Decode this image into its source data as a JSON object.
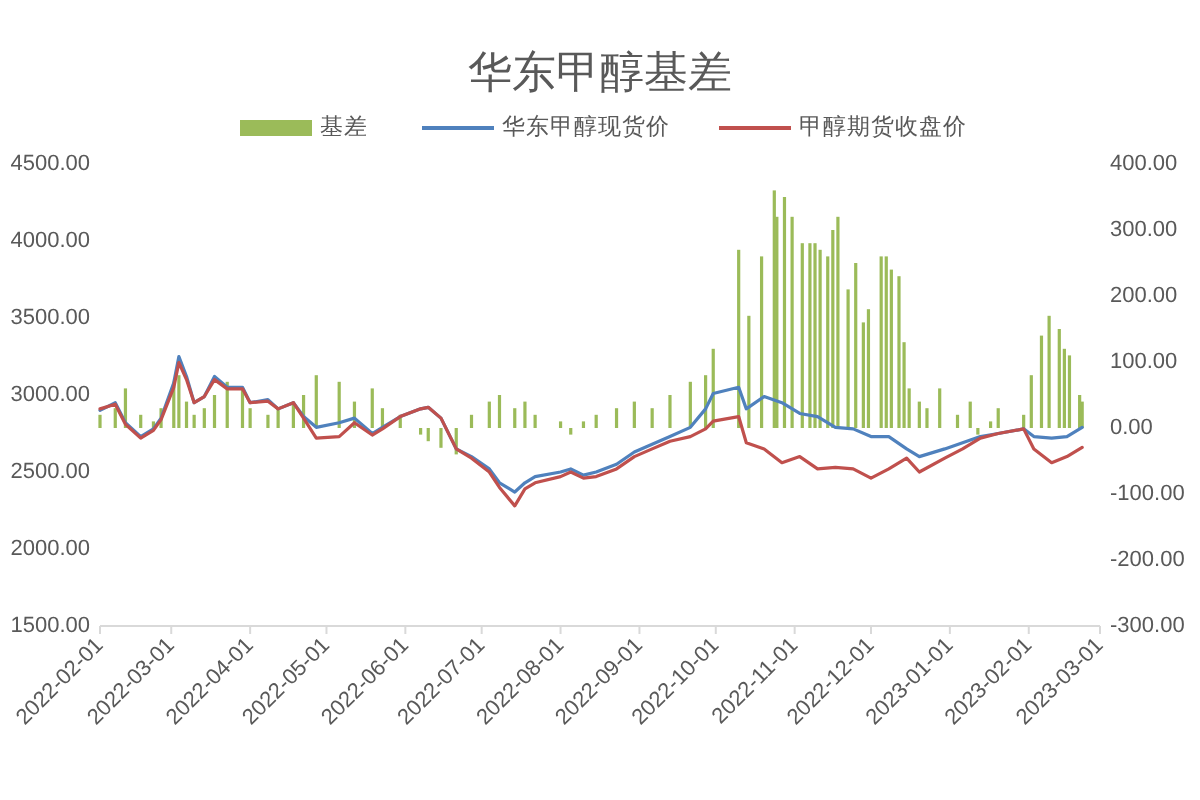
{
  "chart_data": {
    "type": "line",
    "title": "华东甲醇基差",
    "legend": "top",
    "xlim": [
      "2022-02-01",
      "2023-03-01"
    ],
    "xticks": [
      "2022-02-01",
      "2022-03-01",
      "2022-04-01",
      "2022-05-01",
      "2022-06-01",
      "2022-07-01",
      "2022-08-01",
      "2022-09-01",
      "2022-10-01",
      "2022-11-01",
      "2022-12-01",
      "2023-01-01",
      "2023-02-01",
      "2023-03-01"
    ],
    "ylim": [
      1500,
      4500
    ],
    "yticks": [
      {
        "value": 1500,
        "label": "1500.00"
      },
      {
        "value": 2000,
        "label": "2000.00"
      },
      {
        "value": 2500,
        "label": "2500.00"
      },
      {
        "value": 3000,
        "label": "3000.00"
      },
      {
        "value": 3500,
        "label": "3500.00"
      },
      {
        "value": 4000,
        "label": "4000.00"
      },
      {
        "value": 4500,
        "label": "4500.00"
      }
    ],
    "y2lim": [
      -300,
      400
    ],
    "y2ticks": [
      {
        "value": -300,
        "label": "-300.00"
      },
      {
        "value": -200,
        "label": "-200.00"
      },
      {
        "value": -100,
        "label": "-100.00"
      },
      {
        "value": 0,
        "label": "0.00"
      },
      {
        "value": 100,
        "label": "100.00"
      },
      {
        "value": 200,
        "label": "200.00"
      },
      {
        "value": 300,
        "label": "300.00"
      },
      {
        "value": 400,
        "label": "400.00"
      }
    ],
    "x": [
      "2022-02-01",
      "2022-02-07",
      "2022-02-11",
      "2022-02-17",
      "2022-02-22",
      "2022-02-25",
      "2022-03-02",
      "2022-03-04",
      "2022-03-07",
      "2022-03-10",
      "2022-03-14",
      "2022-03-18",
      "2022-03-23",
      "2022-03-29",
      "2022-04-01",
      "2022-04-08",
      "2022-04-12",
      "2022-04-18",
      "2022-04-22",
      "2022-04-27",
      "2022-05-06",
      "2022-05-12",
      "2022-05-19",
      "2022-05-23",
      "2022-05-30",
      "2022-06-07",
      "2022-06-10",
      "2022-06-15",
      "2022-06-21",
      "2022-06-27",
      "2022-07-04",
      "2022-07-08",
      "2022-07-14",
      "2022-07-18",
      "2022-07-22",
      "2022-08-01",
      "2022-08-05",
      "2022-08-10",
      "2022-08-15",
      "2022-08-23",
      "2022-08-30",
      "2022-09-06",
      "2022-09-13",
      "2022-09-21",
      "2022-09-27",
      "2022-09-30",
      "2022-10-10",
      "2022-10-13",
      "2022-10-20",
      "2022-10-27",
      "2022-11-03",
      "2022-11-10",
      "2022-11-17",
      "2022-11-24",
      "2022-12-01",
      "2022-12-08",
      "2022-12-15",
      "2022-12-20",
      "2022-12-30",
      "2023-01-06",
      "2023-01-13",
      "2023-01-20",
      "2023-01-30",
      "2023-02-03",
      "2023-02-10",
      "2023-02-16",
      "2023-02-22"
    ],
    "series": [
      {
        "name": "基差",
        "type": "bar",
        "axis": "y2",
        "color": "#9bbb59",
        "x": [
          "2022-02-01",
          "2022-02-07",
          "2022-02-11",
          "2022-02-17",
          "2022-02-22",
          "2022-02-25",
          "2022-03-02",
          "2022-03-04",
          "2022-03-07",
          "2022-03-10",
          "2022-03-14",
          "2022-03-18",
          "2022-03-23",
          "2022-03-29",
          "2022-04-01",
          "2022-04-08",
          "2022-04-12",
          "2022-04-18",
          "2022-04-22",
          "2022-04-27",
          "2022-05-06",
          "2022-05-12",
          "2022-05-19",
          "2022-05-23",
          "2022-05-30",
          "2022-06-07",
          "2022-06-10",
          "2022-06-15",
          "2022-06-21",
          "2022-06-27",
          "2022-07-04",
          "2022-07-08",
          "2022-07-14",
          "2022-07-18",
          "2022-07-22",
          "2022-08-01",
          "2022-08-05",
          "2022-08-10",
          "2022-08-15",
          "2022-08-23",
          "2022-08-30",
          "2022-09-06",
          "2022-09-13",
          "2022-09-21",
          "2022-09-27",
          "2022-09-30",
          "2022-10-10",
          "2022-10-14",
          "2022-10-19",
          "2022-10-24",
          "2022-10-25",
          "2022-10-28",
          "2022-10-31",
          "2022-11-04",
          "2022-11-07",
          "2022-11-09",
          "2022-11-11",
          "2022-11-14",
          "2022-11-16",
          "2022-11-18",
          "2022-11-22",
          "2022-11-25",
          "2022-11-28",
          "2022-11-30",
          "2022-12-05",
          "2022-12-07",
          "2022-12-09",
          "2022-12-12",
          "2022-12-14",
          "2022-12-16",
          "2022-12-20",
          "2022-12-23",
          "2022-12-28",
          "2023-01-04",
          "2023-01-09",
          "2023-01-12",
          "2023-01-17",
          "2023-01-20",
          "2023-01-30",
          "2023-02-02",
          "2023-02-06",
          "2023-02-09",
          "2023-02-13",
          "2023-02-15",
          "2023-02-17",
          "2023-02-21",
          "2023-02-22"
        ],
        "values": [
          20,
          30,
          60,
          20,
          10,
          30,
          70,
          80,
          40,
          20,
          30,
          50,
          70,
          60,
          30,
          20,
          30,
          40,
          50,
          80,
          70,
          40,
          60,
          30,
          20,
          -10,
          -20,
          -30,
          -40,
          20,
          40,
          50,
          30,
          40,
          20,
          10,
          -10,
          10,
          20,
          30,
          40,
          30,
          50,
          70,
          80,
          120,
          270,
          170,
          260,
          360,
          320,
          350,
          320,
          280,
          280,
          280,
          270,
          260,
          300,
          320,
          210,
          250,
          160,
          180,
          260,
          260,
          240,
          230,
          130,
          60,
          40,
          30,
          60,
          20,
          40,
          -10,
          10,
          30,
          20,
          80,
          140,
          170,
          150,
          120,
          110,
          50,
          40
        ]
      },
      {
        "name": "华东甲醇现货价",
        "color": "#4f81bd",
        "values": [
          2900,
          2950,
          2820,
          2730,
          2780,
          2850,
          3080,
          3250,
          3120,
          2950,
          2990,
          3120,
          3050,
          3050,
          2950,
          2970,
          2910,
          2950,
          2860,
          2790,
          2820,
          2850,
          2750,
          2790,
          2860,
          2910,
          2920,
          2850,
          2650,
          2600,
          2520,
          2430,
          2370,
          2430,
          2470,
          2500,
          2520,
          2480,
          2500,
          2550,
          2630,
          2680,
          2730,
          2790,
          2910,
          3010,
          3050,
          2910,
          2990,
          2950,
          2880,
          2860,
          2790,
          2780,
          2730,
          2730,
          2650,
          2600,
          2650,
          2690,
          2730,
          2750,
          2780,
          2730,
          2720,
          2730,
          2790
        ]
      },
      {
        "name": "甲醇期货收盘价",
        "color": "#c0504d",
        "values": [
          2910,
          2940,
          2810,
          2720,
          2770,
          2840,
          3050,
          3210,
          3100,
          2950,
          2990,
          3100,
          3040,
          3040,
          2950,
          2960,
          2910,
          2950,
          2850,
          2720,
          2730,
          2820,
          2740,
          2780,
          2860,
          2910,
          2920,
          2850,
          2650,
          2590,
          2500,
          2400,
          2280,
          2390,
          2430,
          2470,
          2500,
          2460,
          2470,
          2520,
          2600,
          2650,
          2700,
          2730,
          2780,
          2830,
          2860,
          2690,
          2650,
          2560,
          2600,
          2520,
          2530,
          2520,
          2460,
          2520,
          2590,
          2500,
          2590,
          2650,
          2720,
          2750,
          2780,
          2650,
          2560,
          2600,
          2660
        ]
      }
    ]
  }
}
